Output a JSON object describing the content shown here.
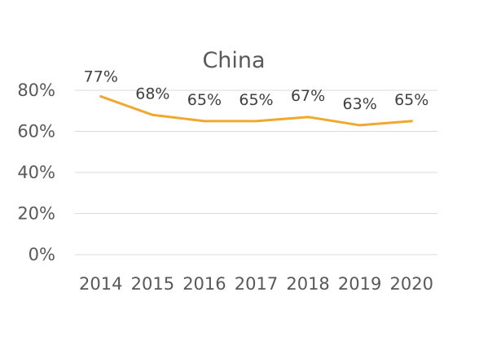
{
  "chart_data": {
    "type": "line",
    "title": "China",
    "categories": [
      "2014",
      "2015",
      "2016",
      "2017",
      "2018",
      "2019",
      "2020"
    ],
    "series": [
      {
        "values": [
          77,
          68,
          65,
          65,
          67,
          63,
          65
        ],
        "data_labels": [
          "77%",
          "68%",
          "65%",
          "65%",
          "67%",
          "63%",
          "65%"
        ],
        "color": "#F0A830"
      }
    ],
    "y_ticks": [
      0,
      20,
      40,
      60,
      80
    ],
    "y_tick_labels": [
      "0%",
      "20%",
      "40%",
      "60%",
      "80%"
    ],
    "ylim": [
      0,
      80
    ],
    "grid": true,
    "legend": "none"
  }
}
